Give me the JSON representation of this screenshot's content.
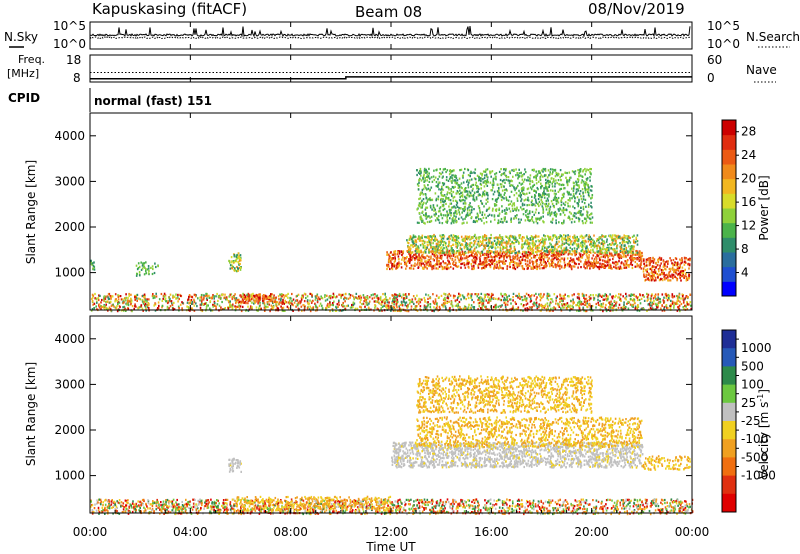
{
  "header": {
    "station": "Kapuskasing (fitACF)",
    "beam": "Beam 08",
    "date": "08/Nov/2019"
  },
  "noise_panel": {
    "left_label": "N.Sky",
    "right_label": "N.Search",
    "left_ticks": [
      "10^5",
      "10^0"
    ],
    "right_ticks": [
      "10^5",
      "10^0"
    ]
  },
  "freq_panel": {
    "left_label_line1": "Freq.",
    "left_label_line2": "[MHz]",
    "left_ticks": [
      "18",
      "8"
    ],
    "right_label": "Nave",
    "right_ticks": [
      "60",
      "0"
    ]
  },
  "cpid": {
    "label": "CPID",
    "value": "normal (fast) 151"
  },
  "chart_data": [
    {
      "type": "heatmap",
      "name": "power",
      "ylabel": "Slant Range [km]",
      "ylim": [
        180,
        4500
      ],
      "yticks": [
        "4000",
        "3000",
        "2000",
        "1000"
      ],
      "yticks_values": [
        4000,
        3000,
        2000,
        1000
      ],
      "colorbar": {
        "label": "Power [dB]",
        "ticks": [
          "28",
          "24",
          "20",
          "16",
          "12",
          "8",
          "4"
        ],
        "tick_values": [
          28,
          24,
          20,
          16,
          12,
          8,
          4
        ],
        "range": [
          0,
          30
        ],
        "colors": [
          "#0000ff",
          "#1f4fd1",
          "#2a6e9e",
          "#2f8d6a",
          "#4bb34a",
          "#8fd13a",
          "#d8dc2a",
          "#f2b720",
          "#f08a1b",
          "#eb5a14",
          "#e02d10",
          "#cc0000"
        ]
      },
      "regions": [
        {
          "t0": 0.0,
          "t1": 24.0,
          "r0": 180,
          "r1": 560,
          "level": "mixed"
        },
        {
          "t0": 5.8,
          "t1": 7.4,
          "r0": 350,
          "r1": 540,
          "level": "high"
        },
        {
          "t0": 11.8,
          "t1": 22.0,
          "r0": 1100,
          "r1": 1500,
          "level": "high"
        },
        {
          "t0": 12.6,
          "t1": 21.8,
          "r0": 1450,
          "r1": 1850,
          "level": "mid"
        },
        {
          "t0": 13.0,
          "t1": 20.0,
          "r0": 2100,
          "r1": 3300,
          "level": "low"
        },
        {
          "t0": 22.0,
          "t1": 23.9,
          "r0": 850,
          "r1": 1350,
          "level": "high"
        },
        {
          "t0": 1.8,
          "t1": 2.7,
          "r0": 950,
          "r1": 1250,
          "level": "low"
        },
        {
          "t0": 5.5,
          "t1": 6.0,
          "r0": 1050,
          "r1": 1450,
          "level": "mid"
        },
        {
          "t0": 0.0,
          "t1": 0.2,
          "r0": 1050,
          "r1": 1300,
          "level": "low"
        }
      ]
    },
    {
      "type": "heatmap",
      "name": "velocity",
      "ylabel": "Slant Range [km]",
      "ylim": [
        180,
        4500
      ],
      "yticks": [
        "4000",
        "3000",
        "2000",
        "1000"
      ],
      "yticks_values": [
        4000,
        3000,
        2000,
        1000
      ],
      "colorbar": {
        "label": "Velocity [m s",
        "label_sup": "-1",
        "label_end": "]",
        "ticks": [
          "1000",
          "500",
          "100",
          "25",
          "-25",
          "-100",
          "-500",
          "-1000"
        ],
        "tick_values": [
          1000,
          500,
          100,
          25,
          -25,
          -100,
          -500,
          -1000
        ],
        "colors": [
          "#1f2e96",
          "#2659b8",
          "#2d8a4a",
          "#6cc840",
          "#c0c0c0",
          "#f0d020",
          "#f0a020",
          "#f06f10",
          "#e03010",
          "#e00000"
        ]
      },
      "regions": [
        {
          "t0": 0.0,
          "t1": 24.0,
          "r0": 180,
          "r1": 500,
          "level": "mixed"
        },
        {
          "t0": 5.8,
          "t1": 12.0,
          "r0": 250,
          "r1": 560,
          "level": "neg"
        },
        {
          "t0": 12.0,
          "t1": 22.0,
          "r0": 1200,
          "r1": 1750,
          "level": "zero"
        },
        {
          "t0": 13.0,
          "t1": 22.0,
          "r0": 1650,
          "r1": 2300,
          "level": "neg"
        },
        {
          "t0": 13.0,
          "t1": 20.0,
          "r0": 2400,
          "r1": 3200,
          "level": "neg"
        },
        {
          "t0": 22.0,
          "t1": 23.9,
          "r0": 1150,
          "r1": 1450,
          "level": "neg"
        },
        {
          "t0": 5.5,
          "t1": 6.0,
          "r0": 1100,
          "r1": 1400,
          "level": "zero"
        }
      ]
    }
  ],
  "xaxis": {
    "label": "Time UT",
    "ticks": [
      "00:00",
      "04:00",
      "08:00",
      "12:00",
      "16:00",
      "20:00",
      "00:00"
    ],
    "tick_hours": [
      0,
      4,
      8,
      12,
      16,
      20,
      24
    ]
  },
  "series": {
    "freq_dotted_level": 11.5,
    "freq_solid_levels": [
      9.2,
      9.9
    ],
    "freq_step_hour": 10.2
  }
}
